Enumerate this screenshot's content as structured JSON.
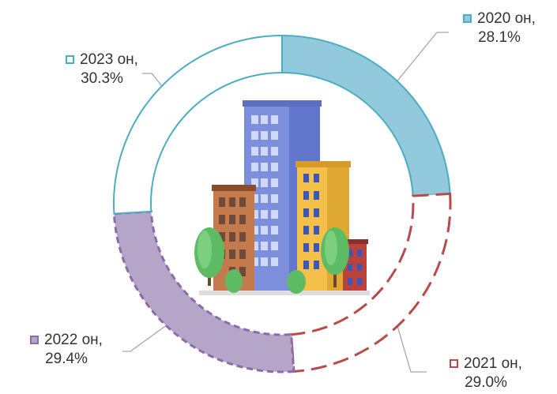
{
  "chart_data": {
    "type": "donut",
    "start_angle_deg": 0,
    "direction": "clockwise",
    "series": [
      {
        "category": "2020 он",
        "value": 28.1,
        "value_label": "28.1%",
        "fill": "#93c9dc",
        "stroke": "#4aaec3",
        "style": "solid-filled"
      },
      {
        "category": "2021 он",
        "value": 29.0,
        "value_label": "29.0%",
        "fill": "#ffffff",
        "stroke": "#b84a4a",
        "style": "dashed-outline"
      },
      {
        "category": "2022 он",
        "value": 29.4,
        "value_label": "29.4%",
        "fill": "#b5a6c9",
        "stroke": "#8b6ba8",
        "style": "dashed-filled"
      },
      {
        "category": "2023 он",
        "value": 30.3,
        "value_label": "30.3%",
        "fill": "#ffffff",
        "stroke": "#4aaec3",
        "style": "solid-outline"
      }
    ],
    "center_image": "apartment-buildings-illustration",
    "legend": "none"
  }
}
